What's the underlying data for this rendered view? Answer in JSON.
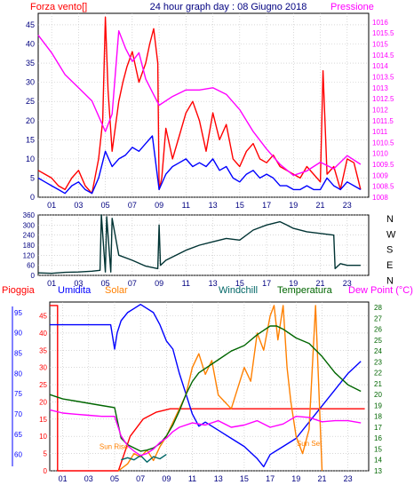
{
  "header": {
    "title": "24 hour graph day : 08 Giugno 2018",
    "left_label": "Forza vento[]",
    "right_label": "Pressione"
  },
  "colors": {
    "wind": "#ff0000",
    "gust": "#0000ff",
    "pressure": "#ff00ff",
    "direction": "#003333",
    "rain": "#ff0000",
    "humidity": "#0000ff",
    "solar": "#ff8000",
    "windchill": "#006666",
    "temperature": "#006600",
    "dewpoint": "#ff00ff",
    "axis_text": "#000080",
    "grid": "#c0c0c0"
  },
  "chart_data": [
    {
      "type": "line",
      "title": "",
      "xlabel": "",
      "ylabel_left": "Forza vento[]",
      "ylabel_right": "Pressione",
      "x_ticks": [
        "01",
        "03",
        "05",
        "07",
        "09",
        "11",
        "13",
        "15",
        "17",
        "19",
        "21",
        "23"
      ],
      "yleft_ticks": [
        "0",
        "5",
        "10",
        "15",
        "20",
        "25",
        "30",
        "35",
        "40",
        "45"
      ],
      "yright_ticks": [
        "1008",
        "1008.5",
        "1009",
        "1009.5",
        "1010",
        "1010.5",
        "1011",
        "1011.5",
        "1012",
        "1012.5",
        "1013",
        "1013.5",
        "1014",
        "1014.5",
        "1015",
        "1015.5",
        "1016"
      ],
      "yleft_lim": [
        0,
        48
      ],
      "yright_lim": [
        1008,
        1016.4
      ],
      "x_lim": [
        0,
        24.6
      ],
      "series": [
        {
          "key": "wind",
          "color": "#ff0000",
          "y_axis": "left",
          "x": [
            0,
            0.5,
            1,
            1.5,
            2,
            2.5,
            3,
            3.5,
            4,
            4.5,
            4.8,
            5,
            5.2,
            5.5,
            6,
            6.3,
            6.6,
            7,
            7.5,
            8,
            8.3,
            8.6,
            8.9,
            9,
            9.2,
            9.5,
            10,
            10.5,
            11,
            11.5,
            12,
            12.5,
            13,
            13.5,
            14,
            14.5,
            15,
            15.5,
            16,
            16.5,
            17,
            17.5,
            18,
            18.5,
            19,
            19.5,
            20,
            20.5,
            21,
            21.2,
            21.5,
            22,
            22.5,
            23,
            23.5,
            24
          ],
          "values": [
            7,
            6,
            5,
            3,
            2,
            5,
            7,
            3,
            1,
            10,
            20,
            47,
            28,
            12,
            25,
            30,
            34,
            38,
            30,
            35,
            40,
            44,
            35,
            2,
            5,
            18,
            10,
            16,
            22,
            25,
            20,
            12,
            22,
            15,
            19,
            10,
            8,
            12,
            14,
            10,
            9,
            11,
            8,
            7,
            6,
            5,
            8,
            6,
            4,
            33,
            6,
            8,
            2,
            10,
            9,
            2
          ]
        },
        {
          "key": "gust",
          "color": "#0000ff",
          "y_axis": "left",
          "x": [
            0,
            0.5,
            1,
            1.5,
            2,
            2.5,
            3,
            3.5,
            4,
            4.5,
            5,
            5.5,
            6,
            6.5,
            7,
            7.5,
            8,
            8.5,
            9,
            9.5,
            10,
            10.5,
            11,
            11.5,
            12,
            12.5,
            13,
            13.5,
            14,
            14.5,
            15,
            15.5,
            16,
            16.5,
            17,
            17.5,
            18,
            18.5,
            19,
            19.5,
            20,
            20.5,
            21,
            21.5,
            22,
            22.5,
            23,
            23.5,
            24
          ],
          "values": [
            5,
            4,
            3,
            2,
            1,
            3,
            4,
            2,
            1,
            5,
            12,
            8,
            10,
            11,
            13,
            12,
            14,
            16,
            2,
            6,
            8,
            9,
            10,
            8,
            9,
            8,
            10,
            7,
            8,
            5,
            4,
            6,
            7,
            5,
            6,
            5,
            3,
            3,
            2,
            2,
            3,
            2,
            2,
            5,
            3,
            2,
            4,
            3,
            2
          ]
        },
        {
          "key": "pressure",
          "color": "#ff00ff",
          "y_axis": "right",
          "x": [
            0,
            1,
            2,
            3,
            4,
            5,
            5.5,
            6,
            6.5,
            7,
            7.5,
            8,
            8.5,
            9,
            10,
            11,
            12,
            13,
            14,
            15,
            16,
            17,
            18,
            19,
            20,
            21,
            22,
            23,
            24
          ],
          "values": [
            1015.4,
            1014.6,
            1013.6,
            1013.0,
            1012.4,
            1011.0,
            1011.8,
            1015.6,
            1014.8,
            1014.2,
            1014.6,
            1013.4,
            1012.8,
            1012.2,
            1012.6,
            1012.9,
            1012.9,
            1013.0,
            1012.7,
            1012.0,
            1011.0,
            1010.2,
            1009.5,
            1009.0,
            1009.2,
            1009.6,
            1009.3,
            1009.9,
            1009.5
          ]
        }
      ]
    },
    {
      "type": "line",
      "title": "",
      "x_ticks": [
        "01",
        "03",
        "05",
        "07",
        "09",
        "11",
        "13",
        "15",
        "17",
        "19",
        "21",
        "23"
      ],
      "y_ticks": [
        "0",
        "60",
        "120",
        "180",
        "240",
        "300",
        "360"
      ],
      "y_lim": [
        0,
        360
      ],
      "x_lim": [
        0,
        24.6
      ],
      "compass_labels": [
        "N",
        "W",
        "S",
        "E",
        "N"
      ],
      "series": [
        {
          "key": "direction",
          "color": "#003333",
          "x": [
            0,
            1,
            2,
            3,
            4,
            4.6,
            4.7,
            5,
            5.1,
            5.4,
            5.5,
            6,
            7,
            8,
            8.9,
            9,
            9.1,
            9.5,
            10,
            11,
            12,
            13,
            14,
            15,
            16,
            17,
            18,
            18.5,
            19,
            20,
            21,
            22,
            22.1,
            22.5,
            23,
            24
          ],
          "values": [
            15,
            12,
            18,
            20,
            25,
            30,
            360,
            20,
            350,
            20,
            340,
            120,
            90,
            55,
            40,
            300,
            60,
            90,
            110,
            150,
            180,
            200,
            220,
            210,
            270,
            300,
            320,
            300,
            280,
            260,
            250,
            240,
            40,
            70,
            60,
            60
          ]
        }
      ]
    },
    {
      "type": "line",
      "title": "",
      "labels": [
        "Pioggia",
        "Umidita",
        "Solar",
        "Windchill",
        "Temperatura",
        "Dew Point (°C)"
      ],
      "x_ticks": [
        "01",
        "03",
        "05",
        "07",
        "09",
        "11",
        "13",
        "15",
        "17",
        "19",
        "21",
        "23"
      ],
      "yleft_ticks": [
        "0",
        "5",
        "10",
        "15",
        "20",
        "25",
        "30",
        "35",
        "40",
        "45"
      ],
      "yhum_ticks": [
        "60",
        "65",
        "70",
        "75",
        "80",
        "85",
        "90",
        "95"
      ],
      "yright_ticks": [
        "13",
        "14",
        "15",
        "16",
        "17",
        "18",
        "19",
        "20",
        "21",
        "22",
        "23",
        "24",
        "25",
        "26",
        "27",
        "28"
      ],
      "annotations": [
        "Sun Rise",
        "Sun Set"
      ],
      "yleft_lim": [
        0,
        49
      ],
      "yright_lim": [
        13,
        28.5
      ],
      "yhum_lim": [
        56,
        97.6
      ],
      "x_lim": [
        0,
        24.6
      ],
      "series": [
        {
          "key": "rain",
          "color": "#ff0000",
          "y_axis": "left",
          "x": [
            0,
            0.6,
            0.6,
            5.3,
            6.2,
            7.2,
            8.2,
            9.3,
            24.3
          ],
          "values": [
            48,
            48,
            0,
            0,
            10,
            15,
            17,
            18,
            18
          ]
        },
        {
          "key": "humidity",
          "color": "#0000ff",
          "y_axis": "humidity",
          "x": [
            0,
            2,
            3,
            4,
            4.7,
            5,
            5.2,
            5.5,
            6,
            6.5,
            7,
            7.5,
            8,
            8.5,
            9,
            9.5,
            10,
            10.5,
            11,
            11.5,
            12,
            13,
            14,
            15,
            16,
            16.5,
            17,
            18,
            19,
            20,
            20.5,
            21,
            22,
            23,
            24
          ],
          "values": [
            92,
            92,
            92,
            92,
            92,
            86,
            90,
            93,
            95,
            96,
            97,
            96,
            95,
            92,
            88,
            86,
            80,
            75,
            70,
            67,
            68,
            66,
            64,
            62,
            59,
            57,
            60,
            62,
            64,
            68,
            70,
            72,
            76,
            80,
            83
          ]
        },
        {
          "key": "solar",
          "color": "#ff8000",
          "y_axis": "left",
          "x": [
            5.3,
            6,
            6.5,
            7,
            7.5,
            8,
            8.5,
            9,
            9.5,
            10,
            10.5,
            11,
            11.5,
            12,
            12.5,
            13,
            14,
            15,
            15.5,
            16,
            16.5,
            17,
            17.3,
            17.6,
            18,
            18.3,
            18.6,
            19,
            19.5,
            20,
            20.5,
            21
          ],
          "values": [
            0,
            2,
            5,
            4,
            6,
            3,
            7,
            10,
            14,
            18,
            22,
            30,
            34,
            28,
            32,
            22,
            18,
            30,
            26,
            40,
            35,
            45,
            48,
            38,
            48,
            30,
            20,
            10,
            5,
            12,
            48,
            0
          ]
        },
        {
          "key": "windchill",
          "color": "#006666",
          "y_axis": "right",
          "x": [
            5.5,
            6,
            6.5,
            7,
            7.5,
            8,
            8.5,
            9
          ],
          "values": [
            14.0,
            14.2,
            14.0,
            14.4,
            13.8,
            14.3,
            14.1,
            14.5
          ]
        },
        {
          "key": "temperature",
          "color": "#006600",
          "y_axis": "right",
          "x": [
            0,
            1,
            2,
            3,
            4,
            5,
            5.5,
            6,
            6.5,
            7,
            7.5,
            8,
            8.5,
            9,
            9.5,
            10,
            10.5,
            11,
            11.5,
            12,
            13,
            14,
            15,
            16,
            17,
            17.5,
            18,
            18.5,
            19,
            20,
            21,
            22,
            23,
            24
          ],
          "values": [
            20.0,
            19.6,
            19.4,
            19.2,
            19.0,
            18.8,
            16.0,
            15.4,
            15.1,
            14.8,
            14.9,
            15.1,
            15.5,
            16.2,
            17.2,
            18.5,
            20.0,
            21.2,
            22.0,
            22.4,
            23.2,
            24.0,
            24.5,
            25.5,
            26.3,
            26.3,
            26.0,
            25.6,
            25.2,
            24.7,
            23.5,
            22.0,
            20.9,
            20.3
          ]
        },
        {
          "key": "dewpoint",
          "color": "#ff00ff",
          "y_axis": "right",
          "x": [
            0,
            1,
            2,
            3,
            4,
            5,
            5.5,
            6,
            6.5,
            7,
            7.5,
            8,
            8.5,
            9,
            9.5,
            10,
            11,
            12,
            13,
            14,
            15,
            16,
            17,
            18,
            19,
            20,
            21,
            22,
            23,
            24
          ],
          "values": [
            18.6,
            18.3,
            18.2,
            18.1,
            18.0,
            18.0,
            16.2,
            15.3,
            14.8,
            14.4,
            14.6,
            15.0,
            15.6,
            16.0,
            16.6,
            17.0,
            17.4,
            17.2,
            17.6,
            17.0,
            17.2,
            17.6,
            17.0,
            17.3,
            18.0,
            17.9,
            17.5,
            17.6,
            17.6,
            17.4
          ]
        }
      ]
    }
  ]
}
